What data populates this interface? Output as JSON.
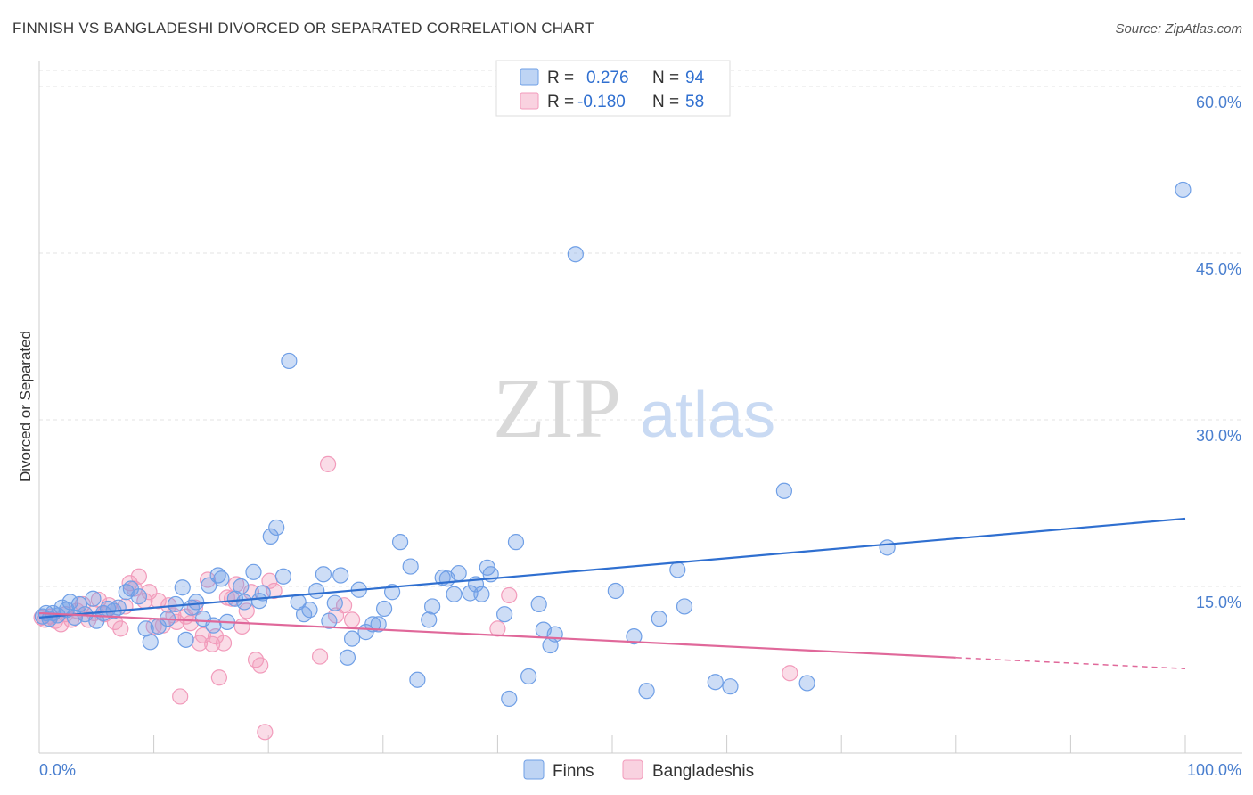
{
  "title": "FINNISH VS BANGLADESHI DIVORCED OR SEPARATED CORRELATION CHART",
  "source": "Source: ZipAtlas.com",
  "watermark": {
    "zip": "ZIP",
    "atlas": "atlas"
  },
  "colors": {
    "finns": "#6f9fe6",
    "finns_line": "#2f6fd0",
    "bangladeshis": "#f29bbb",
    "bangladeshis_line": "#e0689a"
  },
  "legend": {
    "finns": {
      "r_label": "R =",
      "r_value": "0.276",
      "n_label": "N =",
      "n_value": "94"
    },
    "bangladeshis": {
      "r_label": "R =",
      "r_value": "-0.180",
      "n_label": "N =",
      "n_value": "58"
    }
  },
  "bottom_legend": {
    "finns": "Finns",
    "bangladeshis": "Bangladeshis"
  },
  "chart_data": {
    "type": "scatter",
    "title": "FINNISH VS BANGLADESHI DIVORCED OR SEPARATED CORRELATION CHART",
    "xlabel": "",
    "ylabel": "Divorced or Separated",
    "xlim": [
      0,
      100
    ],
    "ylim": [
      0,
      60
    ],
    "x_tick_labels": [
      "0.0%",
      "100.0%"
    ],
    "y_ticks": [
      15,
      30,
      45,
      60
    ],
    "y_tick_labels": [
      "15.0%",
      "30.0%",
      "45.0%",
      "60.0%"
    ],
    "grid": true,
    "legend_position": "top-center",
    "series": [
      {
        "name": "Finns",
        "trend": {
          "x0": 0,
          "y0": 12.2,
          "x1": 100,
          "y1": 21.1
        },
        "points": [
          [
            0.3,
            12.3
          ],
          [
            0.6,
            12.6
          ],
          [
            0.9,
            12.1
          ],
          [
            1.2,
            12.6
          ],
          [
            1.6,
            12.4
          ],
          [
            2.0,
            13.1
          ],
          [
            2.4,
            12.9
          ],
          [
            2.7,
            13.6
          ],
          [
            3.1,
            12.2
          ],
          [
            3.5,
            13.4
          ],
          [
            4.0,
            12.5
          ],
          [
            4.7,
            13.9
          ],
          [
            5.0,
            11.9
          ],
          [
            5.6,
            12.6
          ],
          [
            6.0,
            13.0
          ],
          [
            6.5,
            12.8
          ],
          [
            6.9,
            13.1
          ],
          [
            7.6,
            14.5
          ],
          [
            8.0,
            14.8
          ],
          [
            8.7,
            14.1
          ],
          [
            9.3,
            11.2
          ],
          [
            9.7,
            10.0
          ],
          [
            10.4,
            11.4
          ],
          [
            11.2,
            12.1
          ],
          [
            11.9,
            13.4
          ],
          [
            12.5,
            14.9
          ],
          [
            12.8,
            10.2
          ],
          [
            13.3,
            13.1
          ],
          [
            13.7,
            13.6
          ],
          [
            14.3,
            12.1
          ],
          [
            14.8,
            15.1
          ],
          [
            15.2,
            11.5
          ],
          [
            15.6,
            16.0
          ],
          [
            15.9,
            15.7
          ],
          [
            16.4,
            11.8
          ],
          [
            17.1,
            13.9
          ],
          [
            17.6,
            15.0
          ],
          [
            17.9,
            13.6
          ],
          [
            18.7,
            16.3
          ],
          [
            19.2,
            13.7
          ],
          [
            19.5,
            14.4
          ],
          [
            20.2,
            19.5
          ],
          [
            20.7,
            20.3
          ],
          [
            21.3,
            15.9
          ],
          [
            21.8,
            35.3
          ],
          [
            22.6,
            13.6
          ],
          [
            23.1,
            12.5
          ],
          [
            23.6,
            12.9
          ],
          [
            24.2,
            14.6
          ],
          [
            24.8,
            16.1
          ],
          [
            25.3,
            11.9
          ],
          [
            25.8,
            13.5
          ],
          [
            26.3,
            16.0
          ],
          [
            26.9,
            8.6
          ],
          [
            27.3,
            10.3
          ],
          [
            27.9,
            14.7
          ],
          [
            28.5,
            10.9
          ],
          [
            29.1,
            11.6
          ],
          [
            29.6,
            11.6
          ],
          [
            30.1,
            13.0
          ],
          [
            30.8,
            14.5
          ],
          [
            31.5,
            19.0
          ],
          [
            32.4,
            16.8
          ],
          [
            33.0,
            6.6
          ],
          [
            34.0,
            12.0
          ],
          [
            34.3,
            13.2
          ],
          [
            35.2,
            15.8
          ],
          [
            35.6,
            15.7
          ],
          [
            36.2,
            14.3
          ],
          [
            36.6,
            16.2
          ],
          [
            37.6,
            14.4
          ],
          [
            38.1,
            15.2
          ],
          [
            38.6,
            14.3
          ],
          [
            39.1,
            16.7
          ],
          [
            39.4,
            16.1
          ],
          [
            40.6,
            12.5
          ],
          [
            41.0,
            4.9
          ],
          [
            41.6,
            19.0
          ],
          [
            42.7,
            6.9
          ],
          [
            43.6,
            13.4
          ],
          [
            44.0,
            11.1
          ],
          [
            44.6,
            9.7
          ],
          [
            45.0,
            10.7
          ],
          [
            46.8,
            44.9
          ],
          [
            50.3,
            14.6
          ],
          [
            51.9,
            10.5
          ],
          [
            53.0,
            5.6
          ],
          [
            54.1,
            12.1
          ],
          [
            55.7,
            16.5
          ],
          [
            56.3,
            13.2
          ],
          [
            59.0,
            6.4
          ],
          [
            60.3,
            6.0
          ],
          [
            65.0,
            23.6
          ],
          [
            67.0,
            6.3
          ],
          [
            74.0,
            18.5
          ],
          [
            99.8,
            50.7
          ]
        ]
      },
      {
        "name": "Bangladeshis",
        "trend": {
          "x0": 0,
          "y0": 12.6,
          "x1": 80,
          "y1": 8.6,
          "dash_x1": 100,
          "dash_y1": 7.6
        },
        "points": [
          [
            0.2,
            12.2
          ],
          [
            0.5,
            12.0
          ],
          [
            1.0,
            12.3
          ],
          [
            1.4,
            11.9
          ],
          [
            1.9,
            11.6
          ],
          [
            2.3,
            12.5
          ],
          [
            2.8,
            12.0
          ],
          [
            3.3,
            12.8
          ],
          [
            3.8,
            13.4
          ],
          [
            4.3,
            12.0
          ],
          [
            4.8,
            12.6
          ],
          [
            5.2,
            13.8
          ],
          [
            5.7,
            12.5
          ],
          [
            6.1,
            13.3
          ],
          [
            6.6,
            11.8
          ],
          [
            7.1,
            11.2
          ],
          [
            7.5,
            13.2
          ],
          [
            7.9,
            15.3
          ],
          [
            8.3,
            14.8
          ],
          [
            8.7,
            15.9
          ],
          [
            9.2,
            13.7
          ],
          [
            9.6,
            14.5
          ],
          [
            10.0,
            11.4
          ],
          [
            10.4,
            13.7
          ],
          [
            10.8,
            11.5
          ],
          [
            11.3,
            13.3
          ],
          [
            11.7,
            12.4
          ],
          [
            12.0,
            11.8
          ],
          [
            12.3,
            5.1
          ],
          [
            12.8,
            12.3
          ],
          [
            13.2,
            11.7
          ],
          [
            13.6,
            13.1
          ],
          [
            14.0,
            9.9
          ],
          [
            14.3,
            10.6
          ],
          [
            14.7,
            15.6
          ],
          [
            15.1,
            9.8
          ],
          [
            15.4,
            10.5
          ],
          [
            15.7,
            6.8
          ],
          [
            16.1,
            9.9
          ],
          [
            16.4,
            14.0
          ],
          [
            16.8,
            13.9
          ],
          [
            17.2,
            15.2
          ],
          [
            17.7,
            11.4
          ],
          [
            18.1,
            12.8
          ],
          [
            18.5,
            14.5
          ],
          [
            18.9,
            8.4
          ],
          [
            19.3,
            7.9
          ],
          [
            19.7,
            1.9
          ],
          [
            20.1,
            15.5
          ],
          [
            20.5,
            14.6
          ],
          [
            24.5,
            8.7
          ],
          [
            25.2,
            26.0
          ],
          [
            25.9,
            12.4
          ],
          [
            26.6,
            13.3
          ],
          [
            27.3,
            12.0
          ],
          [
            40.0,
            11.2
          ],
          [
            41.0,
            14.2
          ],
          [
            65.5,
            7.2
          ]
        ]
      }
    ]
  }
}
